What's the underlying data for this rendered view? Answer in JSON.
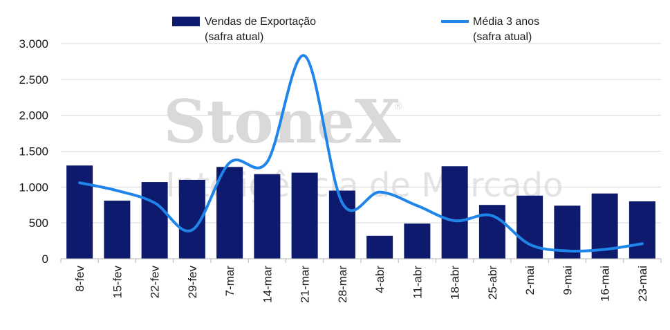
{
  "colors": {
    "bar": "#0e1a6e",
    "line": "#1f85e8",
    "grid": "#d9d9d9",
    "axis": "#b5b5b5",
    "text": "#1a1a1a",
    "watermark": "#d9d9d9"
  },
  "watermark": {
    "brand": "StoneX",
    "registered": "®",
    "tagline": "Inteligência de Mercado"
  },
  "legend": {
    "bar_line1": "Vendas de Exportação",
    "bar_line2": "(safra atual)",
    "line_line1": "Média 3 anos",
    "line_line2": "(safra atual)"
  },
  "chart_data": {
    "type": "bar",
    "categories": [
      "8-fev",
      "15-fev",
      "22-fev",
      "29-fev",
      "7-mar",
      "14-mar",
      "21-mar",
      "28-mar",
      "4-abr",
      "11-abr",
      "18-abr",
      "25-abr",
      "2-mai",
      "9-mai",
      "16-mai",
      "23-mai"
    ],
    "series": [
      {
        "name": "Vendas de Exportação (safra atual)",
        "type": "bar",
        "values": [
          1300,
          810,
          1070,
          1100,
          1280,
          1180,
          1200,
          950,
          320,
          490,
          1290,
          750,
          880,
          740,
          910,
          800
        ]
      },
      {
        "name": "Média 3 anos (safra atual)",
        "type": "line",
        "smooth": true,
        "values": [
          1060,
          950,
          780,
          400,
          1340,
          1350,
          2830,
          780,
          930,
          740,
          530,
          600,
          200,
          110,
          130,
          210
        ]
      }
    ],
    "ylim": [
      0,
      3000
    ],
    "yticks": [
      0,
      500,
      1000,
      1500,
      2000,
      2500,
      3000
    ],
    "ytick_labels": [
      "0",
      "500",
      "1.000",
      "1.500",
      "2.000",
      "2.500",
      "3.000"
    ],
    "grid": true,
    "legend_position": "top",
    "xlabel": "",
    "ylabel": "",
    "title": ""
  }
}
